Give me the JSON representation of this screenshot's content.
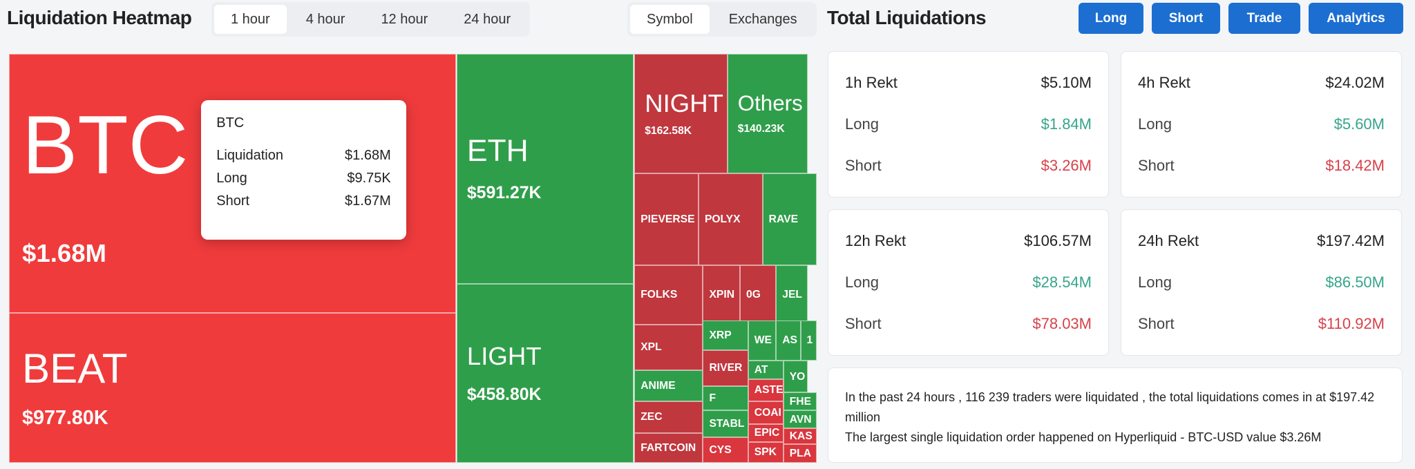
{
  "header": {
    "title": "Liquidation Heatmap",
    "time_tabs": [
      "1 hour",
      "4 hour",
      "12 hour",
      "24 hour"
    ],
    "view_tabs": [
      "Symbol",
      "Exchanges"
    ]
  },
  "heatmap": {
    "tiles": [
      {
        "label": "BTC",
        "value": "$1.68M",
        "color": "#f03b3c"
      },
      {
        "label": "BEAT",
        "value": "$977.80K",
        "color": "#f03b3c"
      },
      {
        "label": "ETH",
        "value": "$591.27K",
        "color": "#2f9e4a"
      },
      {
        "label": "LIGHT",
        "value": "$458.80K",
        "color": "#2f9e4a"
      },
      {
        "label": "NIGHT",
        "value": "$162.58K",
        "color": "#c0373e"
      },
      {
        "label": "Others",
        "value": "$140.23K",
        "color": "#2f9e4a"
      },
      {
        "label": "PIEVERSE",
        "color": "#c0373e"
      },
      {
        "label": "POLYX",
        "color": "#c0373e"
      },
      {
        "label": "RAVE",
        "color": "#2f9e4a"
      },
      {
        "label": "FOLKS",
        "color": "#c0373e"
      },
      {
        "label": "XPIN",
        "color": "#c0373e"
      },
      {
        "label": "0G",
        "color": "#c0373e"
      },
      {
        "label": "JEL",
        "color": "#2f9e4a"
      },
      {
        "label": "XPL",
        "color": "#c0373e"
      },
      {
        "label": "XRP",
        "color": "#2f9e4a"
      },
      {
        "label": "WE",
        "color": "#2f9e4a"
      },
      {
        "label": "AS",
        "color": "#2f9e4a"
      },
      {
        "label": "1",
        "color": "#2f9e4a"
      },
      {
        "label": "RIVER",
        "color": "#c0373e"
      },
      {
        "label": "AT",
        "color": "#2f9e4a"
      },
      {
        "label": "YO",
        "color": "#2f9e4a"
      },
      {
        "label": "ANIME",
        "color": "#2f9e4a"
      },
      {
        "label": "ZEC",
        "color": "#c0373e"
      },
      {
        "label": "FARTCOIN",
        "color": "#c0373e"
      },
      {
        "label": "F",
        "color": "#2f9e4a"
      },
      {
        "label": "ASTE",
        "color": "#d9363e"
      },
      {
        "label": "FHE",
        "color": "#2f9e4a"
      },
      {
        "label": "STABL",
        "color": "#2f9e4a"
      },
      {
        "label": "COAI",
        "color": "#d9363e"
      },
      {
        "label": "AVN",
        "color": "#2f9e4a"
      },
      {
        "label": "EPIC",
        "color": "#d9363e"
      },
      {
        "label": "KAS",
        "color": "#d9363e"
      },
      {
        "label": "CYS",
        "color": "#d9363e"
      },
      {
        "label": "SPK",
        "color": "#d9363e"
      },
      {
        "label": "PLA",
        "color": "#d9363e"
      }
    ],
    "tooltip": {
      "title": "BTC",
      "rows": [
        [
          "Liquidation",
          "$1.68M"
        ],
        [
          "Long",
          "$9.75K"
        ],
        [
          "Short",
          "$1.67M"
        ]
      ]
    }
  },
  "totals": {
    "title": "Total Liquidations",
    "buttons": [
      "Long",
      "Short",
      "Trade",
      "Analytics"
    ],
    "cards": [
      {
        "title": "1h Rekt",
        "total": "$5.10M",
        "long_label": "Long",
        "long": "$1.84M",
        "short_label": "Short",
        "short": "$3.26M"
      },
      {
        "title": "4h Rekt",
        "total": "$24.02M",
        "long_label": "Long",
        "long": "$5.60M",
        "short_label": "Short",
        "short": "$18.42M"
      },
      {
        "title": "12h Rekt",
        "total": "$106.57M",
        "long_label": "Long",
        "long": "$28.54M",
        "short_label": "Short",
        "short": "$78.03M"
      },
      {
        "title": "24h Rekt",
        "total": "$197.42M",
        "long_label": "Long",
        "long": "$86.50M",
        "short_label": "Short",
        "short": "$110.92M"
      }
    ],
    "summary": [
      "In the past 24 hours , 116 239 traders were liquidated , the total liquidations comes in at $197.42 million",
      "The largest single liquidation order happened on Hyperliquid - BTC-USD value $3.26M"
    ]
  }
}
